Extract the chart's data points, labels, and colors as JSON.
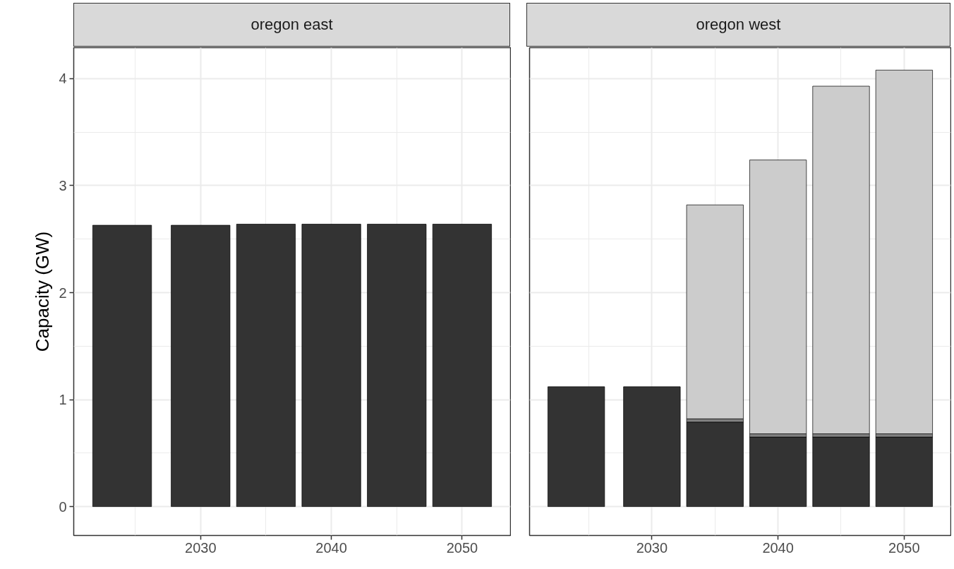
{
  "chart_data": [
    {
      "type": "bar",
      "title": "oregon east",
      "ylabel": "Capacity (GW)",
      "stacked": true,
      "x": [
        2024,
        2030,
        2035,
        2040,
        2045,
        2050
      ],
      "series": [
        {
          "color": "#333333",
          "values": [
            2.63,
            2.63,
            2.64,
            2.64,
            2.64,
            2.64
          ]
        }
      ],
      "xlim": [
        2020.3,
        2053.7
      ],
      "ylim": [
        -0.27,
        4.29
      ],
      "xticks": [
        {
          "value": 2025,
          "label": null
        },
        2030,
        {
          "value": 2035,
          "label": null
        },
        2040,
        {
          "value": 2045,
          "label": null
        },
        2050
      ],
      "yticks": [
        0,
        {
          "value": 0.5,
          "label": null
        },
        1,
        {
          "value": 1.5,
          "label": null
        },
        2,
        {
          "value": 2.5,
          "label": null
        },
        3,
        {
          "value": 3.5,
          "label": null
        },
        4
      ],
      "grid": true
    },
    {
      "type": "bar",
      "title": "oregon west",
      "stacked": true,
      "x": [
        2024,
        2030,
        2035,
        2040,
        2045,
        2050
      ],
      "series": [
        {
          "color": "#333333",
          "values": [
            1.12,
            1.12,
            0.79,
            0.65,
            0.65,
            0.65
          ]
        },
        {
          "color": "#808080",
          "values": [
            null,
            null,
            0.03,
            0.03,
            0.03,
            0.03
          ]
        },
        {
          "color": "#cccccc",
          "values": [
            null,
            null,
            2.0,
            2.56,
            3.25,
            3.4
          ]
        }
      ],
      "xlim": [
        2020.3,
        2053.7
      ],
      "ylim": [
        -0.27,
        4.29
      ],
      "xticks": [
        {
          "value": 2025,
          "label": null
        },
        2030,
        {
          "value": 2035,
          "label": null
        },
        2040,
        {
          "value": 2045,
          "label": null
        },
        2050
      ],
      "yticks": [
        0,
        {
          "value": 0.5,
          "label": null
        },
        1,
        {
          "value": 1.5,
          "label": null
        },
        2,
        {
          "value": 2.5,
          "label": null
        },
        3,
        {
          "value": 3.5,
          "label": null
        },
        4
      ],
      "grid": true,
      "tick_labels": "x"
    }
  ]
}
